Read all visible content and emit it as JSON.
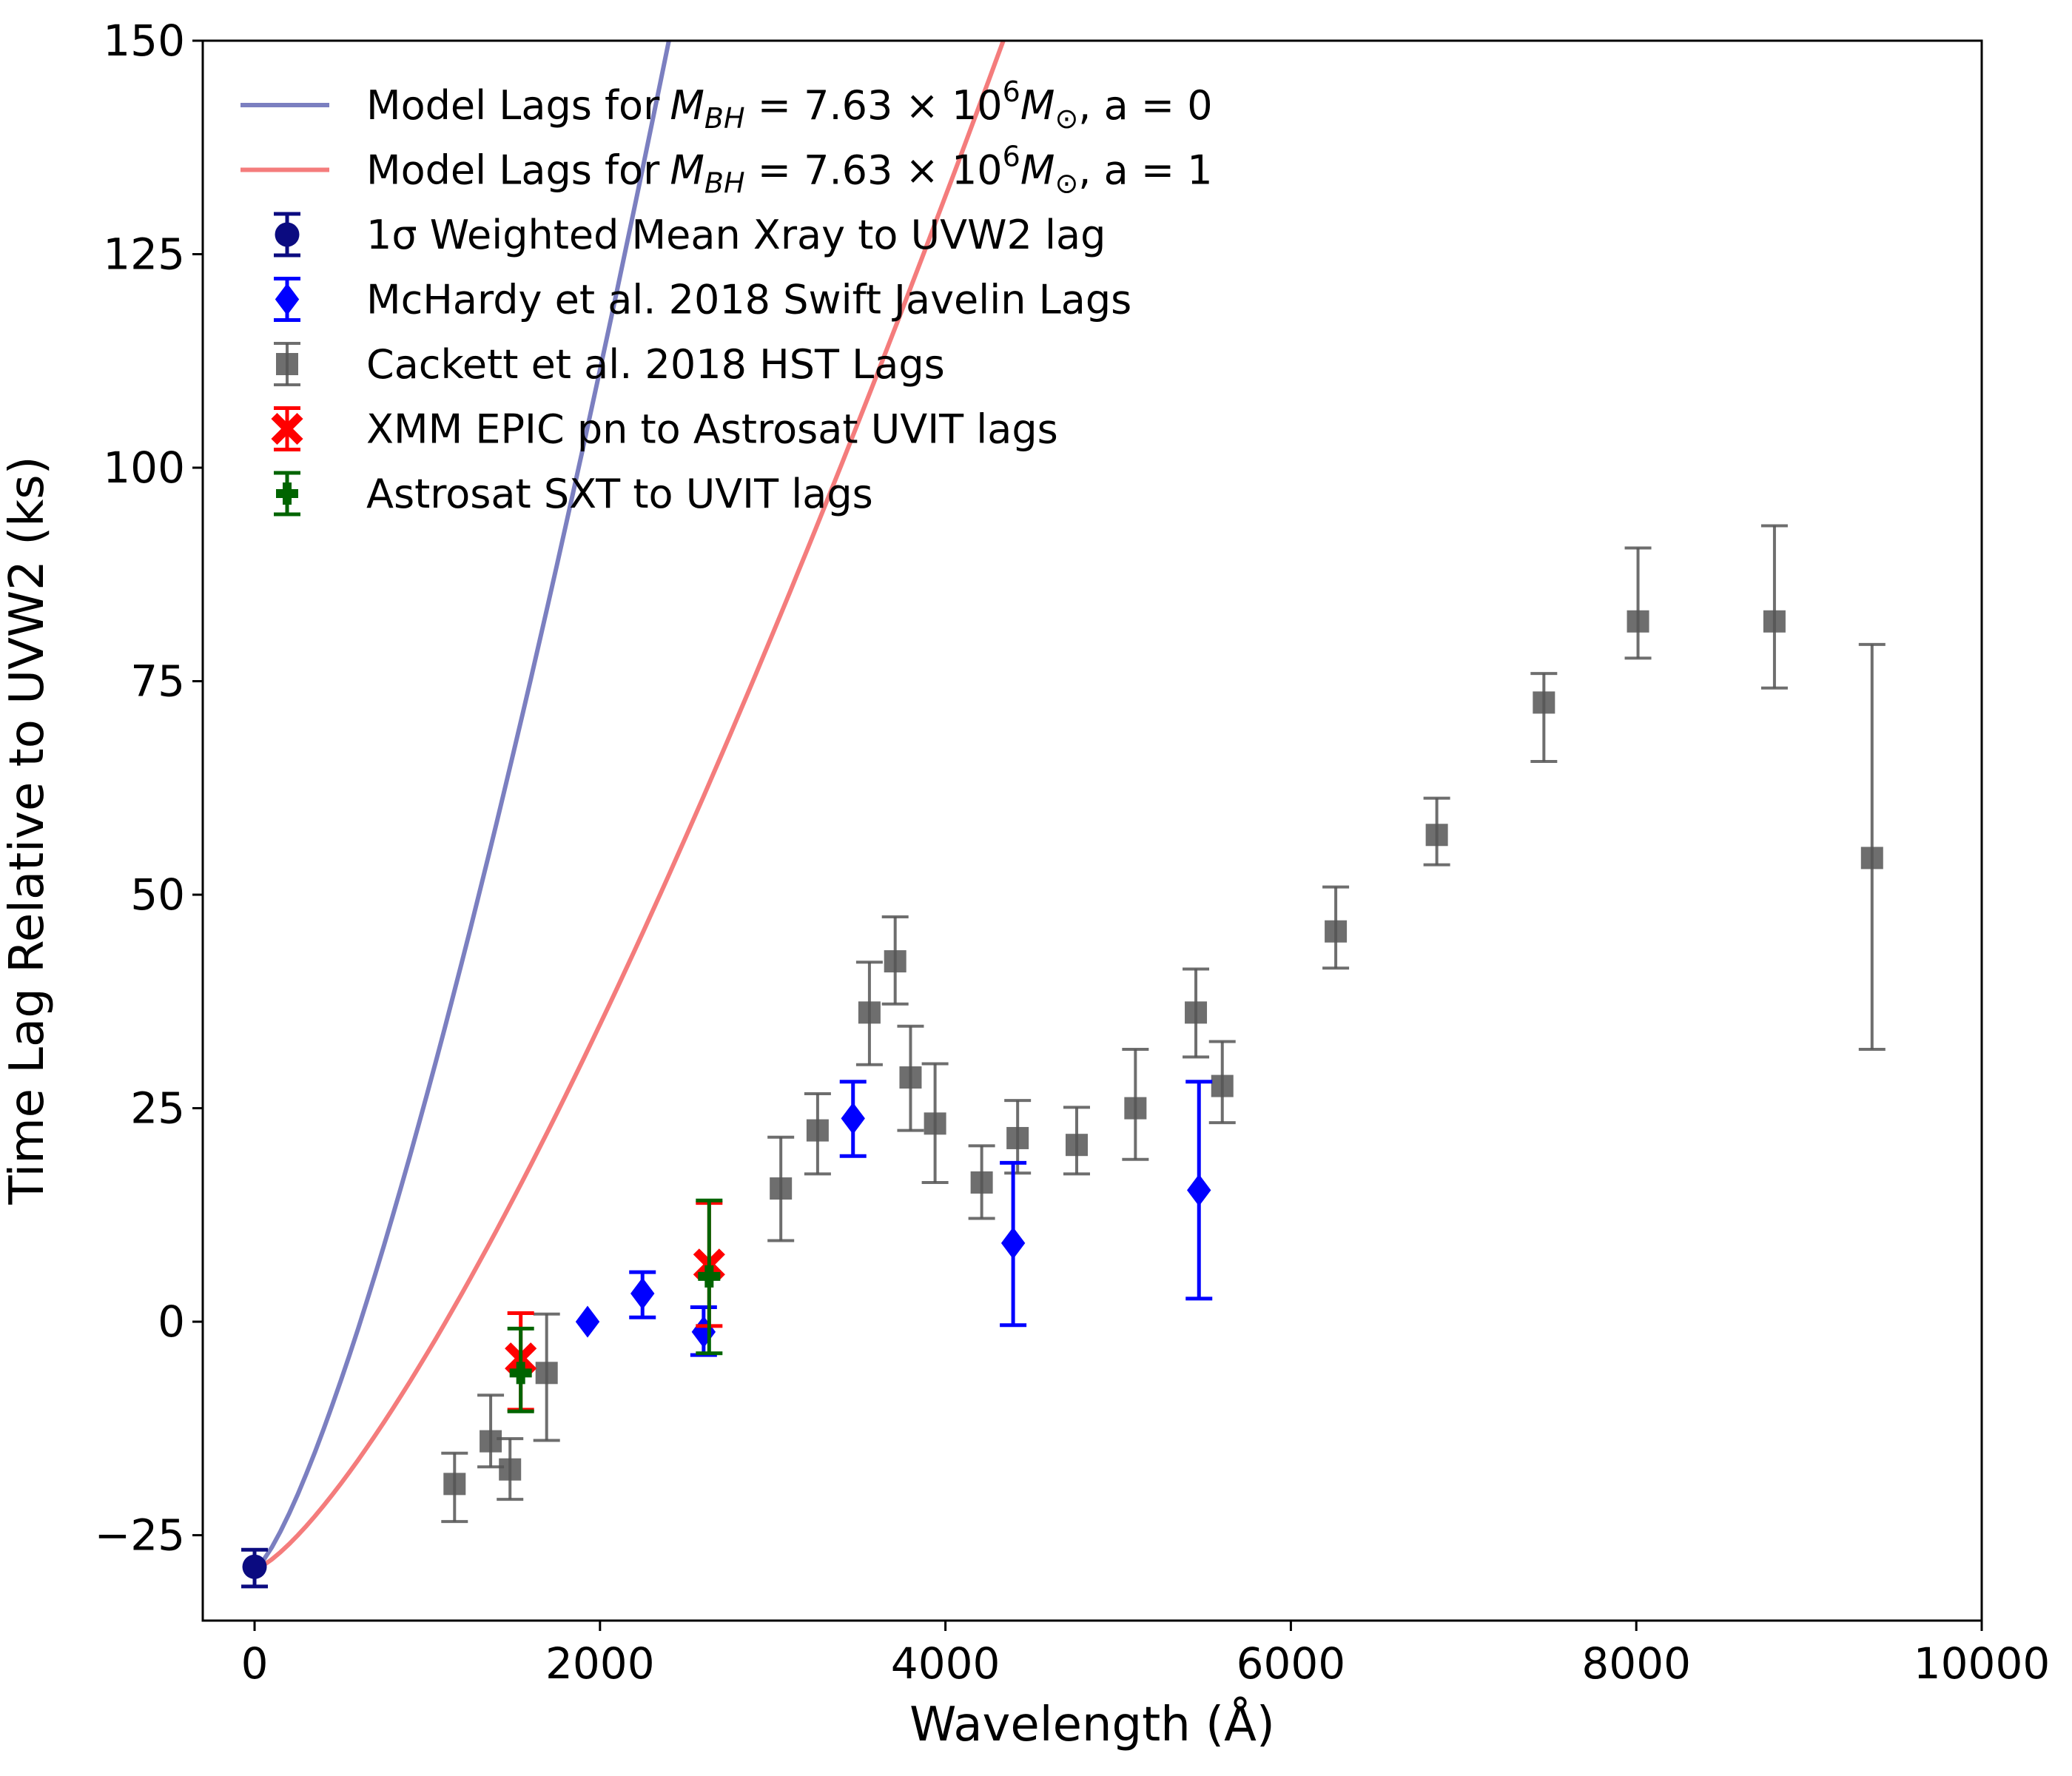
{
  "chart_data": {
    "type": "scatter",
    "xlabel": "Wavelength (Å)",
    "ylabel": "Time Lag Relative to UVW2 (ks)",
    "xlim": [
      -300,
      10000
    ],
    "ylim": [
      -35,
      150
    ],
    "xticks": [
      0,
      2000,
      4000,
      6000,
      8000,
      10000
    ],
    "yticks": [
      -25,
      0,
      25,
      50,
      75,
      100,
      125,
      150
    ],
    "xtick_labels": [
      "0",
      "2000",
      "4000",
      "6000",
      "8000",
      "10000"
    ],
    "ytick_labels": [
      "−25",
      "0",
      "25",
      "50",
      "75",
      "100",
      "125",
      "150"
    ],
    "legend_position": "top-left",
    "curves": [
      {
        "name": "Model Lags for M_BH = 7.63 × 10^6 M_⊙, a = 0",
        "label_prefix": "Model Lags for",
        "label_math": "M",
        "label_sub": "BH",
        "label_mid": " = 7.63 × 10",
        "label_sup": "6",
        "label_math2": "M",
        "label_sub2": "⊙",
        "label_suffix": ", a = 0",
        "color": "#7b7fc0",
        "start": [
          0,
          -29
        ],
        "coef": 0.005576,
        "power": 1.3333
      },
      {
        "name": "Model Lags for M_BH = 7.63 × 10^6 M_⊙, a = 1",
        "label_prefix": "Model Lags for",
        "label_math": "M",
        "label_sub": "BH",
        "label_mid": " = 7.63 × 10",
        "label_sup": "6",
        "label_math2": "M",
        "label_sub2": "⊙",
        "label_suffix": ", a = 1",
        "color": "#f47c7c",
        "start": [
          0,
          -29
        ],
        "coef": 0.002533,
        "power": 1.3333
      }
    ],
    "series": [
      {
        "name": "1σ Weighted Mean Xray to UVW2 lag",
        "label": "1σ Weighted Mean Xray to UVW2 lag",
        "marker": "circle",
        "color": "#0b0b80",
        "points": [
          {
            "x": 0,
            "y": -28.7,
            "lo": -31.0,
            "hi": -26.7
          }
        ]
      },
      {
        "name": "McHardy et al. 2018 Swift Javelin Lags",
        "label": "McHardy et al. 2018 Swift Javelin Lags",
        "marker": "diamond",
        "color": "#0000ff",
        "points": [
          {
            "x": 1928,
            "y": 0.0,
            "lo": 0.0,
            "hi": 0.0
          },
          {
            "x": 2246,
            "y": 3.3,
            "lo": 0.5,
            "hi": 5.8
          },
          {
            "x": 2600,
            "y": -1.2,
            "lo": -3.9,
            "hi": 1.7
          },
          {
            "x": 3465,
            "y": 23.8,
            "lo": 19.4,
            "hi": 28.1
          },
          {
            "x": 4392,
            "y": 9.2,
            "lo": -0.4,
            "hi": 18.6
          },
          {
            "x": 5468,
            "y": 15.4,
            "lo": 2.7,
            "hi": 28.1
          }
        ]
      },
      {
        "name": "Cackett et al. 2018 HST Lags",
        "label": "Cackett et al. 2018 HST Lags",
        "marker": "square",
        "color": "#555555",
        "points": [
          {
            "x": 1158,
            "y": -19.0,
            "lo": -23.4,
            "hi": -15.4
          },
          {
            "x": 1367,
            "y": -14.0,
            "lo": -17.0,
            "hi": -8.6
          },
          {
            "x": 1479,
            "y": -17.3,
            "lo": -20.8,
            "hi": -13.7
          },
          {
            "x": 1691,
            "y": -6.0,
            "lo": -13.9,
            "hi": 0.9
          },
          {
            "x": 3047,
            "y": 15.6,
            "lo": 9.5,
            "hi": 21.6
          },
          {
            "x": 3260,
            "y": 22.4,
            "lo": 17.3,
            "hi": 26.7
          },
          {
            "x": 3560,
            "y": 36.2,
            "lo": 30.1,
            "hi": 42.1
          },
          {
            "x": 3709,
            "y": 42.2,
            "lo": 37.2,
            "hi": 47.4
          },
          {
            "x": 3798,
            "y": 28.6,
            "lo": 22.4,
            "hi": 34.6
          },
          {
            "x": 3940,
            "y": 23.2,
            "lo": 16.3,
            "hi": 30.2
          },
          {
            "x": 4210,
            "y": 16.3,
            "lo": 12.1,
            "hi": 20.6
          },
          {
            "x": 4418,
            "y": 21.5,
            "lo": 17.4,
            "hi": 25.9
          },
          {
            "x": 4760,
            "y": 20.7,
            "lo": 17.3,
            "hi": 25.1
          },
          {
            "x": 5100,
            "y": 25.0,
            "lo": 19.0,
            "hi": 31.9
          },
          {
            "x": 5450,
            "y": 36.2,
            "lo": 31.0,
            "hi": 41.3
          },
          {
            "x": 5603,
            "y": 27.6,
            "lo": 23.3,
            "hi": 32.8
          },
          {
            "x": 6260,
            "y": 45.7,
            "lo": 41.4,
            "hi": 50.9
          },
          {
            "x": 6845,
            "y": 57.0,
            "lo": 53.5,
            "hi": 61.3
          },
          {
            "x": 7465,
            "y": 72.5,
            "lo": 65.6,
            "hi": 75.9
          },
          {
            "x": 8010,
            "y": 82.0,
            "lo": 77.7,
            "hi": 90.6
          },
          {
            "x": 8800,
            "y": 82.0,
            "lo": 74.2,
            "hi": 93.2
          },
          {
            "x": 9365,
            "y": 54.3,
            "lo": 31.9,
            "hi": 79.3
          }
        ]
      },
      {
        "name": "XMM EPIC pn to Astrosat UVIT lags",
        "label": "XMM EPIC pn to Astrosat UVIT lags",
        "marker": "x",
        "color": "#ff0000",
        "points": [
          {
            "x": 1541,
            "y": -4.3,
            "lo": -10.3,
            "hi": 1.0
          },
          {
            "x": 2632,
            "y": 6.7,
            "lo": -0.5,
            "hi": 13.9
          }
        ]
      },
      {
        "name": "Astrosat SXT to UVIT lags",
        "label": "Astrosat SXT to UVIT lags",
        "marker": "plus",
        "color": "#006400",
        "points": [
          {
            "x": 1541,
            "y": -6.0,
            "lo": -10.5,
            "hi": -0.8
          },
          {
            "x": 2632,
            "y": 5.3,
            "lo": -3.7,
            "hi": 14.2
          }
        ]
      }
    ]
  }
}
